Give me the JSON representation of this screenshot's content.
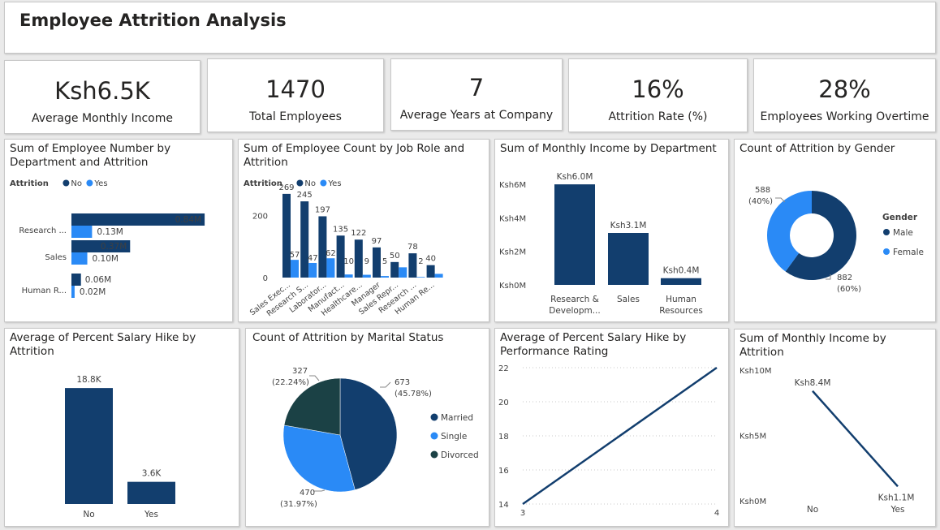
{
  "dashboard": {
    "title": "Employee Attrition Analysis"
  },
  "kpis": [
    {
      "value": "Ksh6.5K",
      "label": "Average Monthly Income"
    },
    {
      "value": "1470",
      "label": "Total Employees"
    },
    {
      "value": "7",
      "label": "Average Years at Company"
    },
    {
      "value": "16%",
      "label": "Attrition Rate (%)"
    },
    {
      "value": "28%",
      "label": "Employees Working Overtime"
    }
  ],
  "colors": {
    "no": "#123e6e",
    "yes": "#2a8af6",
    "divorced": "#1b4145",
    "line": "#123e6e"
  },
  "chart_data": [
    {
      "type": "bar",
      "orientation": "horizontal",
      "title": "Sum of Employee Number by Department and Attrition",
      "legend_title": "Attrition",
      "legend_placement": "top-left",
      "categories": [
        "Research ...",
        "Sales",
        "Human R..."
      ],
      "series": [
        {
          "name": "No",
          "values": [
            0.84,
            0.37,
            0.06
          ],
          "labels": [
            "0.84M",
            "0.37M",
            "0.06M"
          ]
        },
        {
          "name": "Yes",
          "values": [
            0.13,
            0.1,
            0.02
          ],
          "labels": [
            "0.13M",
            "0.10M",
            "0.02M"
          ]
        }
      ],
      "xlim": [
        0,
        0.86
      ]
    },
    {
      "type": "bar",
      "title": "Sum of Employee Count by Job Role and Attrition",
      "legend_title": "Attrition",
      "legend_placement": "top-left",
      "categories": [
        "Sales Exec...",
        "Research S...",
        "Laborator...",
        "Manufact...",
        "Healthcare...",
        "Manager",
        "Sales Repr...",
        "Research ...",
        "Human Re..."
      ],
      "series": [
        {
          "name": "No",
          "values": [
            269,
            245,
            197,
            135,
            122,
            97,
            50,
            78,
            40
          ]
        },
        {
          "name": "Yes",
          "values": [
            57,
            47,
            62,
            10,
            9,
            5,
            33,
            2,
            12
          ]
        }
      ],
      "value_labels": {
        "No": [
          "269",
          "245",
          "197",
          "135",
          "122",
          "97",
          "50",
          "78",
          "40"
        ],
        "Yes": [
          "57",
          "47",
          "62",
          "10",
          "9",
          "5",
          "",
          "2",
          ""
        ]
      },
      "ytick_labels": [
        "0",
        "200"
      ],
      "ylim": [
        0,
        300
      ]
    },
    {
      "type": "bar",
      "title": "Sum of Monthly Income by Department",
      "categories": [
        "Research & Developm...",
        "Sales",
        "Human Resources"
      ],
      "category_lines": [
        [
          "Research &",
          "Developm..."
        ],
        [
          "Sales"
        ],
        [
          "Human",
          "Resources"
        ]
      ],
      "values": [
        6.0,
        3.1,
        0.4
      ],
      "value_labels": [
        "Ksh6.0M",
        "Ksh3.1M",
        "Ksh0.4M"
      ],
      "ytick_labels": [
        "Ksh0M",
        "Ksh2M",
        "Ksh4M",
        "Ksh6M"
      ],
      "ylim": [
        0,
        6.2
      ]
    },
    {
      "type": "pie",
      "donut": true,
      "title": "Count of Attrition by Gender",
      "legend_title": "Gender",
      "legend_placement": "right",
      "slices": [
        {
          "name": "Male",
          "value": 882,
          "label": "882",
          "pct": "(60%)"
        },
        {
          "name": "Female",
          "value": 588,
          "label": "588",
          "pct": "(40%)"
        }
      ]
    },
    {
      "type": "bar",
      "title": "Average of Percent Salary Hike by Attrition",
      "categories": [
        "No",
        "Yes"
      ],
      "values": [
        18.8,
        3.6
      ],
      "value_labels": [
        "18.8K",
        "3.6K"
      ],
      "ylim": [
        0,
        20
      ]
    },
    {
      "type": "pie",
      "title": "Count of Attrition by Marital Status",
      "legend_placement": "right",
      "slices": [
        {
          "name": "Married",
          "value": 673,
          "label": "673",
          "pct": "(45.78%)"
        },
        {
          "name": "Single",
          "value": 470,
          "label": "470",
          "pct": "(31.97%)"
        },
        {
          "name": "Divorced",
          "value": 327,
          "label": "327",
          "pct": "(22.24%)"
        }
      ]
    },
    {
      "type": "line",
      "title": "Average of Percent Salary Hike by Performance Rating",
      "x": [
        3,
        4
      ],
      "y": [
        14,
        22
      ],
      "xtick_labels": [
        "3",
        "4"
      ],
      "ytick_labels": [
        "14",
        "16",
        "18",
        "20",
        "22"
      ],
      "xlim": [
        3,
        4
      ],
      "ylim": [
        14,
        22
      ],
      "grid": true
    },
    {
      "type": "line",
      "title": "Sum of Monthly Income by Attrition",
      "categories": [
        "No",
        "Yes"
      ],
      "values": [
        8.4,
        1.1
      ],
      "value_labels": [
        "Ksh8.4M",
        "Ksh1.1M"
      ],
      "ytick_labels": [
        "Ksh0M",
        "Ksh5M",
        "Ksh10M"
      ],
      "ylim": [
        0,
        10
      ]
    }
  ]
}
